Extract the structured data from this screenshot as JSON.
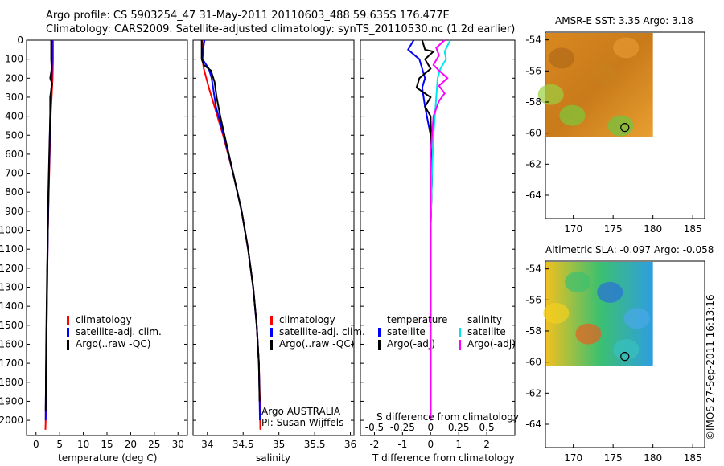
{
  "header": {
    "line1": "Argo profile: CS 5903254_47 31-May-2011 20110603_488 59.635S 176.477E",
    "line2": "Climatology: CARS2009. Satellite-adjusted climatology: synTS_20110530.nc (1.2d earlier)"
  },
  "credit": {
    "stamp": "©IMOS 27-Sep-2011 16:13:16",
    "agency": "Argo AUSTRALIA",
    "pi": "PI: Susan Wijffels"
  },
  "colors": {
    "climatology": "#ff0000",
    "satellite": "#0000ff",
    "argo": "#000000",
    "salinity_satellite": "#00e5ee",
    "salinity_argo": "#ff00ff"
  },
  "legends": {
    "temp": [
      "climatology",
      "satellite-adj. clim.",
      "Argo(..raw -QC)"
    ],
    "sal": [
      "climatology",
      "satellite-adj. clim.",
      "Argo(..raw -QC)"
    ],
    "diff_t_title": "temperature",
    "diff_s_title": "salinity",
    "diff_t": [
      "satellite",
      "Argo(-adj)"
    ],
    "diff_s": [
      "satellite",
      "Argo(-adj)"
    ]
  },
  "panels": {
    "temp_xlabel": "temperature (deg C)",
    "sal_xlabel": "salinity",
    "diff_xlabel": "T difference from climatology",
    "diff_top_label": "S difference from climatology",
    "sst_title": "AMSR-E SST: 3.35 Argo: 3.18",
    "sla_title": "Altimetric SLA: -0.097 Argo: -0.058"
  },
  "chart_data": [
    {
      "type": "line",
      "panel": "temperature",
      "xlabel": "temperature (deg C)",
      "ylabel": "",
      "xlim": [
        -2,
        32
      ],
      "ylim": [
        0,
        2080
      ],
      "xticks": [
        0,
        5,
        10,
        15,
        20,
        25,
        30
      ],
      "yticks": [
        0,
        100,
        200,
        300,
        400,
        500,
        600,
        700,
        800,
        900,
        1000,
        1100,
        1200,
        1300,
        1400,
        1500,
        1600,
        1700,
        1800,
        1900,
        2000
      ],
      "y_reversed": true,
      "series": [
        {
          "name": "climatology",
          "color": "#ff0000",
          "points": [
            [
              3.6,
              0
            ],
            [
              3.6,
              100
            ],
            [
              3.5,
              200
            ],
            [
              3.3,
              300
            ],
            [
              3.1,
              400
            ],
            [
              2.9,
              600
            ],
            [
              2.7,
              800
            ],
            [
              2.5,
              1000
            ],
            [
              2.4,
              1200
            ],
            [
              2.3,
              1400
            ],
            [
              2.2,
              1600
            ],
            [
              2.1,
              1800
            ],
            [
              2.05,
              2000
            ],
            [
              2.0,
              2050
            ]
          ]
        },
        {
          "name": "satellite-adj. clim.",
          "color": "#0000ff",
          "points": [
            [
              3.4,
              0
            ],
            [
              3.4,
              100
            ],
            [
              3.3,
              200
            ],
            [
              3.2,
              300
            ],
            [
              3.0,
              400
            ],
            [
              2.85,
              600
            ],
            [
              2.65,
              800
            ],
            [
              2.5,
              1000
            ],
            [
              2.4,
              1200
            ],
            [
              2.3,
              1400
            ],
            [
              2.2,
              1600
            ],
            [
              2.1,
              1800
            ],
            [
              2.05,
              2000
            ]
          ]
        },
        {
          "name": "Argo(..raw -QC)",
          "color": "#000000",
          "points": [
            [
              3.2,
              0
            ],
            [
              3.2,
              50
            ],
            [
              3.2,
              100
            ],
            [
              3.3,
              150
            ],
            [
              3.0,
              200
            ],
            [
              3.4,
              230
            ],
            [
              3.2,
              260
            ],
            [
              3.0,
              300
            ],
            [
              3.0,
              400
            ],
            [
              2.8,
              600
            ],
            [
              2.6,
              800
            ],
            [
              2.5,
              1000
            ],
            [
              2.35,
              1200
            ],
            [
              2.25,
              1400
            ],
            [
              2.15,
              1600
            ],
            [
              2.1,
              1800
            ],
            [
              2.05,
              1950
            ]
          ]
        }
      ]
    },
    {
      "type": "line",
      "panel": "salinity",
      "xlabel": "salinity",
      "ylabel": "",
      "xlim": [
        33.8,
        36.05
      ],
      "ylim": [
        0,
        2080
      ],
      "xticks": [
        34,
        34.5,
        35,
        35.5,
        36
      ],
      "x_ticklabels": [
        "34",
        "34.5",
        "35",
        "35.5",
        "36"
      ],
      "y_reversed": true,
      "series": [
        {
          "name": "climatology",
          "color": "#ff0000",
          "points": [
            [
              33.93,
              0
            ],
            [
              33.93,
              100
            ],
            [
              33.95,
              150
            ],
            [
              34.02,
              250
            ],
            [
              34.1,
              350
            ],
            [
              34.22,
              500
            ],
            [
              34.36,
              700
            ],
            [
              34.48,
              900
            ],
            [
              34.57,
              1100
            ],
            [
              34.64,
              1300
            ],
            [
              34.69,
              1500
            ],
            [
              34.72,
              1700
            ],
            [
              34.735,
              1900
            ],
            [
              34.74,
              2050
            ]
          ]
        },
        {
          "name": "satellite-adj. clim.",
          "color": "#0000ff",
          "points": [
            [
              33.96,
              0
            ],
            [
              33.94,
              50
            ],
            [
              33.93,
              100
            ],
            [
              34.02,
              150
            ],
            [
              34.06,
              200
            ],
            [
              34.08,
              250
            ],
            [
              34.12,
              350
            ],
            [
              34.23,
              500
            ],
            [
              34.36,
              700
            ],
            [
              34.48,
              900
            ],
            [
              34.57,
              1100
            ],
            [
              34.64,
              1300
            ],
            [
              34.69,
              1500
            ],
            [
              34.72,
              1700
            ],
            [
              34.73,
              1900
            ],
            [
              34.735,
              2000
            ]
          ]
        },
        {
          "name": "Argo(..raw -QC)",
          "color": "#000000",
          "points": [
            [
              33.92,
              0
            ],
            [
              33.92,
              100
            ],
            [
              33.95,
              130
            ],
            [
              34.05,
              160
            ],
            [
              34.1,
              220
            ],
            [
              34.13,
              300
            ],
            [
              34.18,
              400
            ],
            [
              34.24,
              500
            ],
            [
              34.36,
              700
            ],
            [
              34.48,
              900
            ],
            [
              34.57,
              1100
            ],
            [
              34.64,
              1300
            ],
            [
              34.69,
              1500
            ],
            [
              34.72,
              1700
            ],
            [
              34.73,
              1900
            ]
          ]
        }
      ]
    },
    {
      "type": "line",
      "panel": "difference",
      "xlabel": "T difference from climatology",
      "top_label": "S difference from climatology",
      "xlim": [
        -2.5,
        3.0
      ],
      "ylim": [
        0,
        2080
      ],
      "xticks": [
        -2,
        -1,
        0,
        1,
        2
      ],
      "top_ticks": [
        -0.5,
        -0.25,
        0,
        0.25,
        0.5
      ],
      "top_ticklabels": [
        "-0.5",
        "-0.25",
        "0",
        "0.25",
        "0.5"
      ],
      "y_reversed": true,
      "series": [
        {
          "name": "temperature satellite",
          "color": "#0000ff",
          "points": [
            [
              -0.6,
              0
            ],
            [
              -0.8,
              50
            ],
            [
              -0.4,
              100
            ],
            [
              -0.3,
              150
            ],
            [
              -0.2,
              200
            ],
            [
              -0.3,
              250
            ],
            [
              -0.2,
              350
            ],
            [
              0.0,
              500
            ],
            [
              0.05,
              700
            ],
            [
              0.0,
              1000
            ],
            [
              0.0,
              1500
            ],
            [
              0.0,
              2000
            ]
          ]
        },
        {
          "name": "temperature Argo(-adj)",
          "color": "#000000",
          "points": [
            [
              -0.3,
              0
            ],
            [
              -0.2,
              50
            ],
            [
              0.1,
              60
            ],
            [
              -0.2,
              100
            ],
            [
              0.0,
              150
            ],
            [
              -0.4,
              200
            ],
            [
              -0.5,
              250
            ],
            [
              0.0,
              300
            ],
            [
              -0.2,
              350
            ],
            [
              0.0,
              400
            ],
            [
              0.05,
              700
            ],
            [
              0.0,
              1000
            ],
            [
              0.0,
              1500
            ],
            [
              0.0,
              2000
            ]
          ]
        },
        {
          "name": "salinity satellite",
          "color": "#00e5ee",
          "points": [
            [
              0.7,
              0
            ],
            [
              0.6,
              30
            ],
            [
              0.5,
              60
            ],
            [
              0.55,
              100
            ],
            [
              0.35,
              150
            ],
            [
              0.25,
              200
            ],
            [
              0.2,
              300
            ],
            [
              0.1,
              500
            ],
            [
              0.05,
              700
            ],
            [
              0.0,
              1000
            ],
            [
              0.0,
              1500
            ],
            [
              0.0,
              2000
            ]
          ]
        },
        {
          "name": "salinity Argo(-adj)",
          "color": "#ff00ff",
          "points": [
            [
              0.5,
              0
            ],
            [
              0.2,
              40
            ],
            [
              0.3,
              80
            ],
            [
              0.1,
              130
            ],
            [
              0.3,
              160
            ],
            [
              0.6,
              200
            ],
            [
              0.3,
              240
            ],
            [
              0.5,
              280
            ],
            [
              0.3,
              320
            ],
            [
              0.1,
              400
            ],
            [
              0.0,
              600
            ],
            [
              0.0,
              1000
            ],
            [
              0.0,
              1500
            ],
            [
              0.0,
              2000
            ]
          ]
        }
      ]
    },
    {
      "type": "heatmap",
      "panel": "sst_map",
      "title": "AMSR-E SST: 3.35 Argo: 3.18",
      "xlim": [
        166.5,
        186.5
      ],
      "ylim": [
        -65.5,
        -53.5
      ],
      "xticks": [
        170,
        175,
        180,
        185
      ],
      "yticks": [
        -54,
        -56,
        -58,
        -60,
        -62,
        -64
      ],
      "data_extent": {
        "x": [
          166.5,
          180
        ],
        "y": [
          -60.2,
          -53.5
        ]
      },
      "argo_position": {
        "lon": 176.477,
        "lat": -59.635
      }
    },
    {
      "type": "heatmap",
      "panel": "sla_map",
      "title": "Altimetric SLA: -0.097 Argo: -0.058",
      "xlim": [
        166.5,
        186.5
      ],
      "ylim": [
        -65.5,
        -53.5
      ],
      "xticks": [
        170,
        175,
        180,
        185
      ],
      "yticks": [
        -54,
        -56,
        -58,
        -60,
        -62,
        -64
      ],
      "data_extent": {
        "x": [
          166.5,
          180
        ],
        "y": [
          -60.2,
          -53.5
        ]
      },
      "argo_position": {
        "lon": 176.477,
        "lat": -59.635
      }
    }
  ]
}
